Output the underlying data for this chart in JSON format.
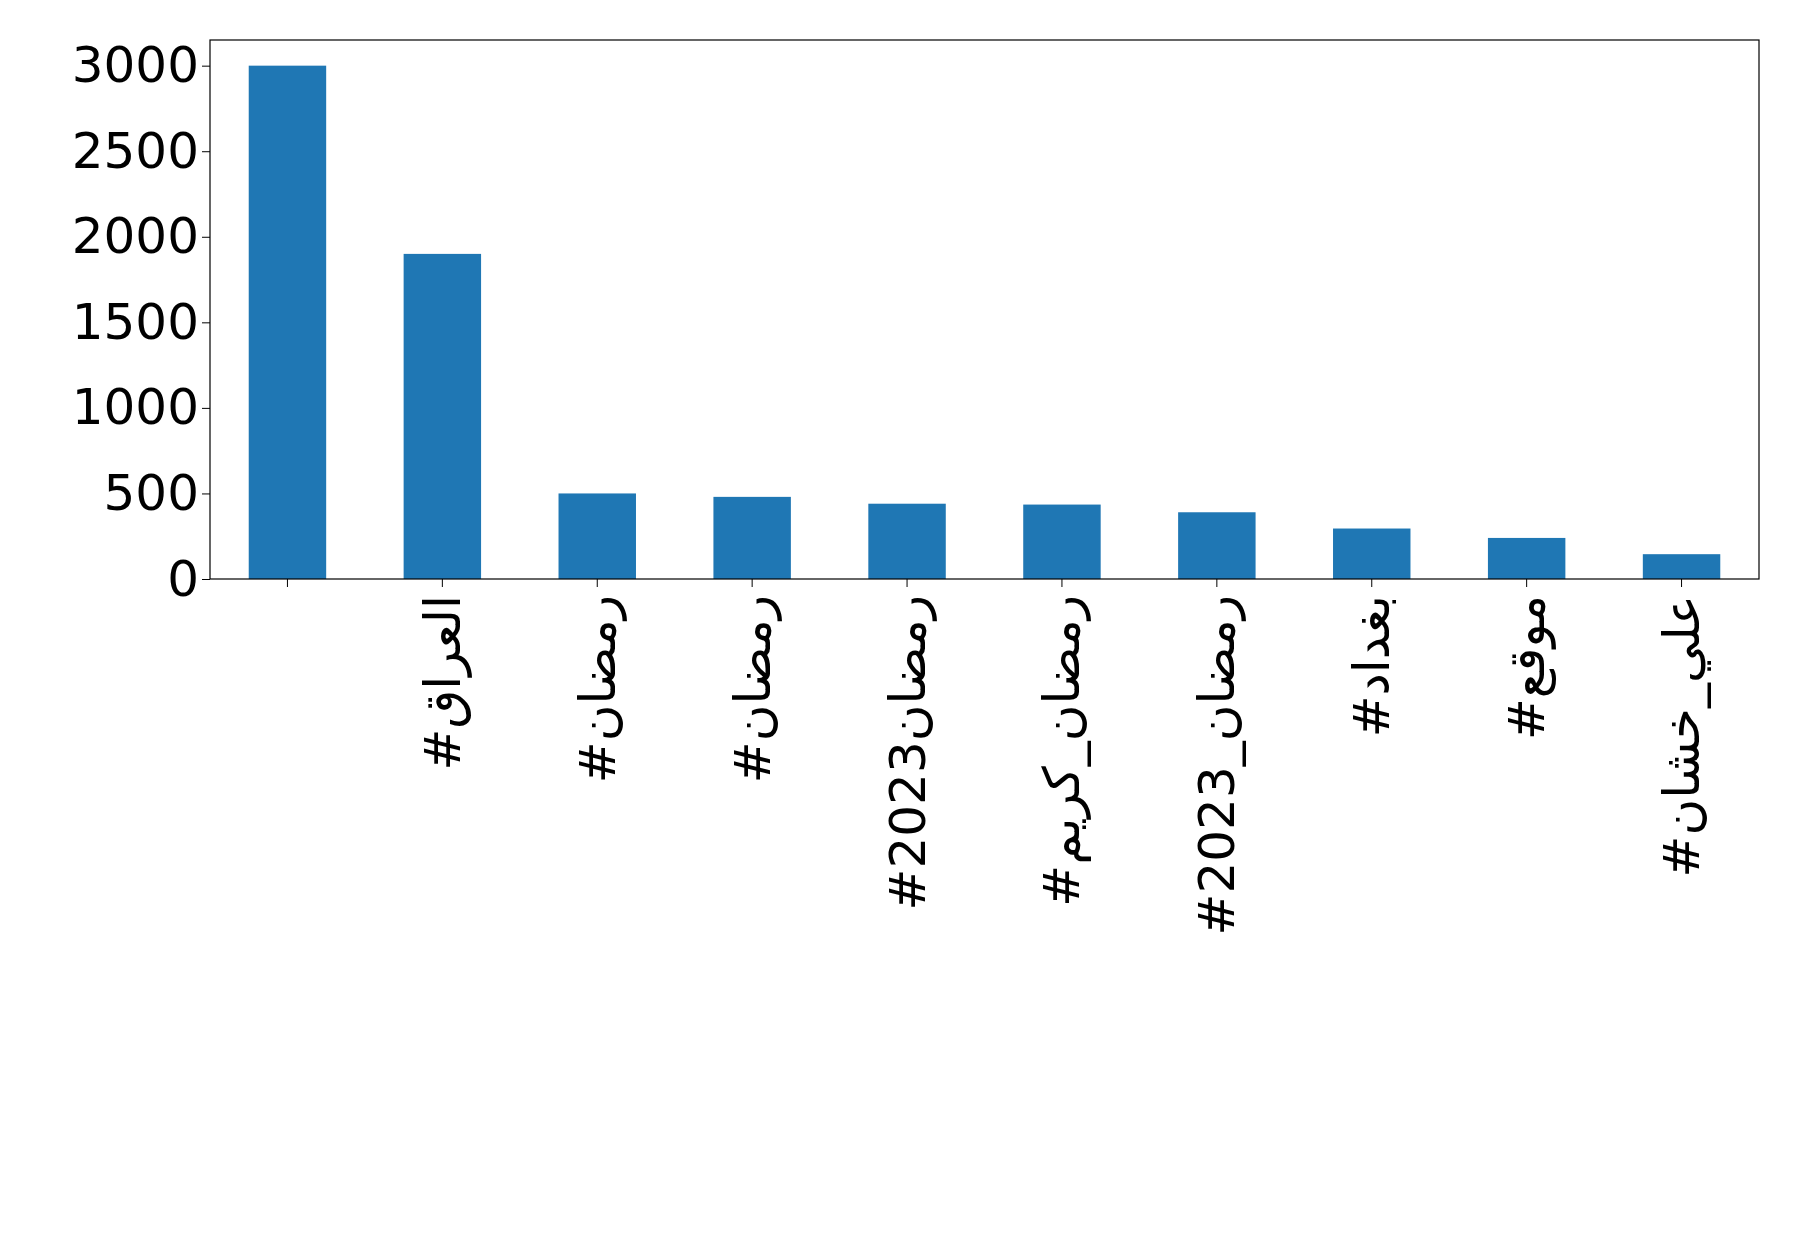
{
  "chart_data": {
    "type": "bar",
    "categories": [
      null,
      "#العراق",
      "#رمضان",
      "#رمضان",
      "#رمضان2023",
      "#رمضان_كريم",
      "#رمضان_2023",
      "#بغداد",
      "#موقع",
      "#علي_خشان"
    ],
    "values": [
      3000,
      1900,
      500,
      480,
      440,
      435,
      390,
      295,
      240,
      145
    ],
    "color": "#1f77b4",
    "ylim": [
      0,
      3150
    ],
    "yticks": [
      0,
      500,
      1000,
      1500,
      2000,
      2500,
      3000
    ],
    "grid": false
  }
}
